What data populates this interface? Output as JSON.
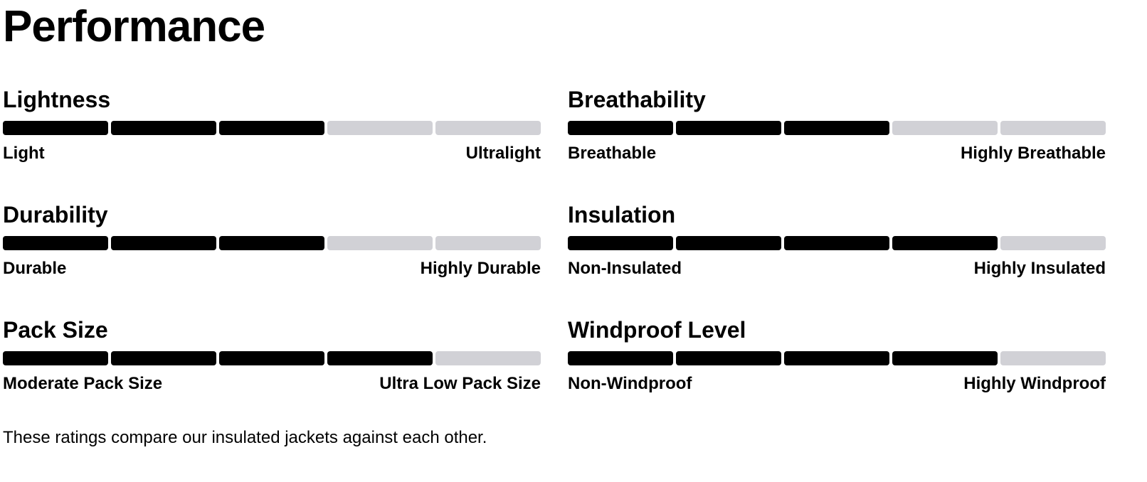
{
  "title": "Performance",
  "segments": 5,
  "ratings": [
    {
      "name": "Lightness",
      "value": 3,
      "low": "Light",
      "high": "Ultralight"
    },
    {
      "name": "Breathability",
      "value": 3,
      "low": "Breathable",
      "high": "Highly Breathable"
    },
    {
      "name": "Durability",
      "value": 3,
      "low": "Durable",
      "high": "Highly Durable"
    },
    {
      "name": "Insulation",
      "value": 4,
      "low": "Non-Insulated",
      "high": "Highly Insulated"
    },
    {
      "name": "Pack Size",
      "value": 4,
      "low": "Moderate Pack Size",
      "high": "Ultra Low Pack Size"
    },
    {
      "name": "Windproof Level",
      "value": 4,
      "low": "Non-Windproof",
      "high": "Highly Windproof"
    }
  ],
  "note": "These ratings compare our insulated jackets against each other."
}
